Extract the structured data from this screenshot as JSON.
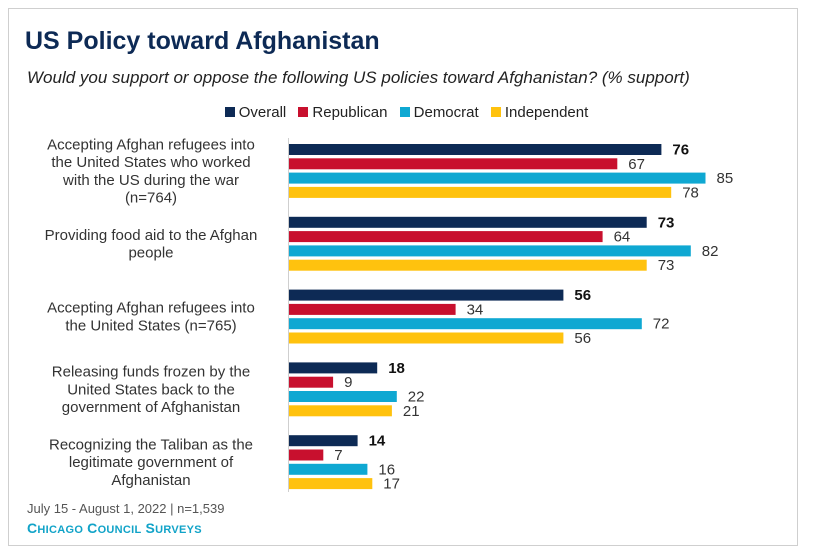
{
  "header": {
    "title": "US Policy toward Afghanistan",
    "subtitle": "Would you support or oppose the following US policies toward Afghanistan? (% support)"
  },
  "footer": {
    "date": "July 15 - August 1, 2022 | n=1,539",
    "brand": "Chicago Council Surveys"
  },
  "chart_data": {
    "type": "bar",
    "orientation": "horizontal",
    "title": "US Policy toward Afghanistan",
    "subtitle": "Would you support or oppose the following US policies toward Afghanistan? (% support)",
    "legend_position": "top-center",
    "categories": [
      [
        "Accepting Afghan refugees into",
        "the United States who worked",
        "with the US during the war",
        "(n=764)"
      ],
      [
        "Providing food aid to the Afghan",
        "people"
      ],
      [
        "Accepting Afghan refugees into",
        "the United States (n=765)"
      ],
      [
        "Releasing funds frozen by the",
        "United States back to the",
        "government of Afghanistan"
      ],
      [
        "Recognizing the Taliban as the",
        "legitimate government of",
        "Afghanistan"
      ]
    ],
    "series": [
      {
        "name": "Overall",
        "color": "#0d2a55",
        "values": [
          76,
          73,
          56,
          18,
          14
        ]
      },
      {
        "name": "Republican",
        "color": "#c8102e",
        "values": [
          67,
          64,
          34,
          9,
          7
        ]
      },
      {
        "name": "Democrat",
        "color": "#0fa8d2",
        "values": [
          85,
          82,
          72,
          22,
          16
        ]
      },
      {
        "name": "Independent",
        "color": "#ffc20e",
        "values": [
          78,
          73,
          56,
          21,
          17
        ]
      }
    ],
    "xlim": [
      0,
      100
    ],
    "grid": false
  }
}
